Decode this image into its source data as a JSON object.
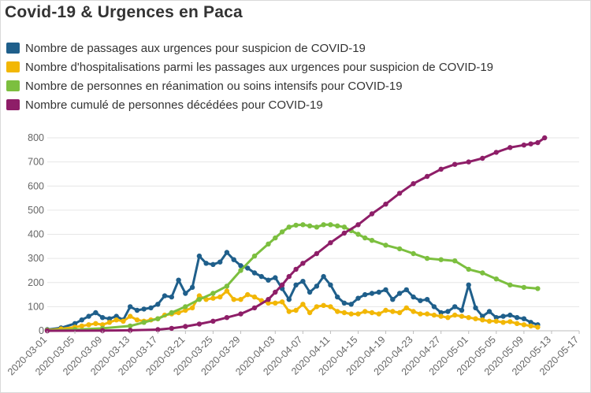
{
  "title": "Covid-19 & Urgences en Paca",
  "chart_data": {
    "type": "line",
    "title": "Covid-19 & Urgences en Paca",
    "xlabel": "",
    "ylabel": "",
    "ylim": [
      0,
      800
    ],
    "yticks": [
      0,
      100,
      200,
      300,
      400,
      500,
      600,
      700,
      800
    ],
    "grid": true,
    "legend_position": "top-left",
    "x_start": "2020-03-01",
    "x_end": "2020-05-17",
    "xticks": [
      "2020-03-01",
      "2020-03-05",
      "2020-03-09",
      "2020-03-13",
      "2020-03-17",
      "2020-03-21",
      "2020-03-25",
      "2020-03-29",
      "2020-04-03",
      "2020-04-07",
      "2020-04-11",
      "2020-04-15",
      "2020-04-19",
      "2020-04-23",
      "2020-04-27",
      "2020-05-01",
      "2020-05-05",
      "2020-05-09",
      "2020-05-13",
      "2020-05-17"
    ],
    "series": [
      {
        "name": "Nombre de passages aux urgences pour suspicion de COVID-19",
        "color": "#1f5f8b",
        "x": [
          "2020-03-01",
          "2020-03-03",
          "2020-03-05",
          "2020-03-06",
          "2020-03-07",
          "2020-03-08",
          "2020-03-09",
          "2020-03-10",
          "2020-03-11",
          "2020-03-12",
          "2020-03-13",
          "2020-03-14",
          "2020-03-15",
          "2020-03-16",
          "2020-03-17",
          "2020-03-18",
          "2020-03-19",
          "2020-03-20",
          "2020-03-21",
          "2020-03-22",
          "2020-03-23",
          "2020-03-24",
          "2020-03-25",
          "2020-03-26",
          "2020-03-27",
          "2020-03-28",
          "2020-03-29",
          "2020-03-30",
          "2020-03-31",
          "2020-04-01",
          "2020-04-02",
          "2020-04-03",
          "2020-04-04",
          "2020-04-05",
          "2020-04-06",
          "2020-04-07",
          "2020-04-08",
          "2020-04-09",
          "2020-04-10",
          "2020-04-11",
          "2020-04-12",
          "2020-04-13",
          "2020-04-14",
          "2020-04-15",
          "2020-04-16",
          "2020-04-17",
          "2020-04-18",
          "2020-04-19",
          "2020-04-20",
          "2020-04-21",
          "2020-04-22",
          "2020-04-23",
          "2020-04-24",
          "2020-04-25",
          "2020-04-26",
          "2020-04-27",
          "2020-04-28",
          "2020-04-29",
          "2020-04-30",
          "2020-05-01",
          "2020-05-02",
          "2020-05-03",
          "2020-05-04",
          "2020-05-05",
          "2020-05-06",
          "2020-05-07",
          "2020-05-08",
          "2020-05-09",
          "2020-05-10",
          "2020-05-11"
        ],
        "y": [
          5,
          12,
          30,
          45,
          60,
          75,
          55,
          50,
          60,
          45,
          100,
          85,
          90,
          95,
          110,
          145,
          140,
          210,
          155,
          180,
          310,
          280,
          275,
          285,
          325,
          295,
          270,
          260,
          240,
          225,
          210,
          220,
          175,
          130,
          190,
          205,
          160,
          185,
          225,
          190,
          140,
          115,
          110,
          135,
          150,
          155,
          160,
          170,
          130,
          155,
          170,
          140,
          125,
          130,
          100,
          75,
          80,
          100,
          85,
          190,
          95,
          60,
          80,
          55,
          60,
          65,
          55,
          50,
          35,
          25
        ]
      },
      {
        "name": "Nombre d'hospitalisations parmi les passages aux urgences pour suspicion de COVID-19",
        "color": "#f2b705",
        "x": [
          "2020-03-01",
          "2020-03-03",
          "2020-03-05",
          "2020-03-06",
          "2020-03-07",
          "2020-03-08",
          "2020-03-09",
          "2020-03-10",
          "2020-03-11",
          "2020-03-12",
          "2020-03-13",
          "2020-03-14",
          "2020-03-15",
          "2020-03-16",
          "2020-03-17",
          "2020-03-18",
          "2020-03-19",
          "2020-03-20",
          "2020-03-21",
          "2020-03-22",
          "2020-03-23",
          "2020-03-24",
          "2020-03-25",
          "2020-03-26",
          "2020-03-27",
          "2020-03-28",
          "2020-03-29",
          "2020-03-30",
          "2020-03-31",
          "2020-04-01",
          "2020-04-02",
          "2020-04-03",
          "2020-04-04",
          "2020-04-05",
          "2020-04-06",
          "2020-04-07",
          "2020-04-08",
          "2020-04-09",
          "2020-04-10",
          "2020-04-11",
          "2020-04-12",
          "2020-04-13",
          "2020-04-14",
          "2020-04-15",
          "2020-04-16",
          "2020-04-17",
          "2020-04-18",
          "2020-04-19",
          "2020-04-20",
          "2020-04-21",
          "2020-04-22",
          "2020-04-23",
          "2020-04-24",
          "2020-04-25",
          "2020-04-26",
          "2020-04-27",
          "2020-04-28",
          "2020-04-29",
          "2020-04-30",
          "2020-05-01",
          "2020-05-02",
          "2020-05-03",
          "2020-05-04",
          "2020-05-05",
          "2020-05-06",
          "2020-05-07",
          "2020-05-08",
          "2020-05-09",
          "2020-05-10",
          "2020-05-11"
        ],
        "y": [
          3,
          8,
          15,
          20,
          25,
          30,
          25,
          35,
          45,
          40,
          60,
          45,
          40,
          45,
          50,
          65,
          70,
          75,
          85,
          95,
          145,
          130,
          135,
          140,
          165,
          130,
          130,
          150,
          140,
          125,
          115,
          115,
          120,
          80,
          85,
          110,
          75,
          100,
          105,
          100,
          80,
          75,
          70,
          70,
          80,
          75,
          70,
          85,
          80,
          75,
          95,
          80,
          70,
          70,
          65,
          60,
          55,
          65,
          60,
          55,
          50,
          45,
          40,
          40,
          35,
          38,
          30,
          25,
          20,
          15
        ]
      },
      {
        "name": "Nombre de personnes en réanimation ou soins intensifs pour COVID-19",
        "color": "#7cbf3f",
        "x": [
          "2020-03-01",
          "2020-03-05",
          "2020-03-09",
          "2020-03-13",
          "2020-03-15",
          "2020-03-17",
          "2020-03-19",
          "2020-03-21",
          "2020-03-23",
          "2020-03-25",
          "2020-03-27",
          "2020-03-29",
          "2020-03-31",
          "2020-04-02",
          "2020-04-03",
          "2020-04-04",
          "2020-04-05",
          "2020-04-06",
          "2020-04-07",
          "2020-04-08",
          "2020-04-09",
          "2020-04-10",
          "2020-04-11",
          "2020-04-12",
          "2020-04-13",
          "2020-04-14",
          "2020-04-15",
          "2020-04-16",
          "2020-04-17",
          "2020-04-19",
          "2020-04-21",
          "2020-04-23",
          "2020-04-25",
          "2020-04-27",
          "2020-04-29",
          "2020-05-01",
          "2020-05-03",
          "2020-05-05",
          "2020-05-07",
          "2020-05-09",
          "2020-05-11"
        ],
        "y": [
          2,
          5,
          10,
          20,
          35,
          50,
          75,
          100,
          130,
          155,
          185,
          250,
          310,
          360,
          385,
          410,
          430,
          438,
          440,
          435,
          430,
          440,
          440,
          435,
          430,
          415,
          400,
          385,
          375,
          355,
          340,
          320,
          300,
          295,
          290,
          255,
          240,
          215,
          190,
          180,
          175
        ]
      },
      {
        "name": "Nombre cumulé de personnes décédées pour COVID-19",
        "color": "#8e1e68",
        "x": [
          "2020-03-01",
          "2020-03-09",
          "2020-03-13",
          "2020-03-17",
          "2020-03-19",
          "2020-03-21",
          "2020-03-23",
          "2020-03-25",
          "2020-03-27",
          "2020-03-29",
          "2020-03-31",
          "2020-04-02",
          "2020-04-03",
          "2020-04-04",
          "2020-04-05",
          "2020-04-06",
          "2020-04-07",
          "2020-04-09",
          "2020-04-11",
          "2020-04-13",
          "2020-04-15",
          "2020-04-17",
          "2020-04-19",
          "2020-04-21",
          "2020-04-23",
          "2020-04-25",
          "2020-04-27",
          "2020-04-29",
          "2020-05-01",
          "2020-05-03",
          "2020-05-05",
          "2020-05-07",
          "2020-05-09",
          "2020-05-10",
          "2020-05-11",
          "2020-05-12"
        ],
        "y": [
          0,
          1,
          2,
          5,
          10,
          18,
          28,
          40,
          55,
          70,
          95,
          130,
          160,
          190,
          225,
          255,
          280,
          320,
          365,
          405,
          440,
          485,
          525,
          570,
          610,
          640,
          670,
          690,
          700,
          715,
          740,
          760,
          770,
          775,
          780,
          800
        ]
      }
    ]
  }
}
